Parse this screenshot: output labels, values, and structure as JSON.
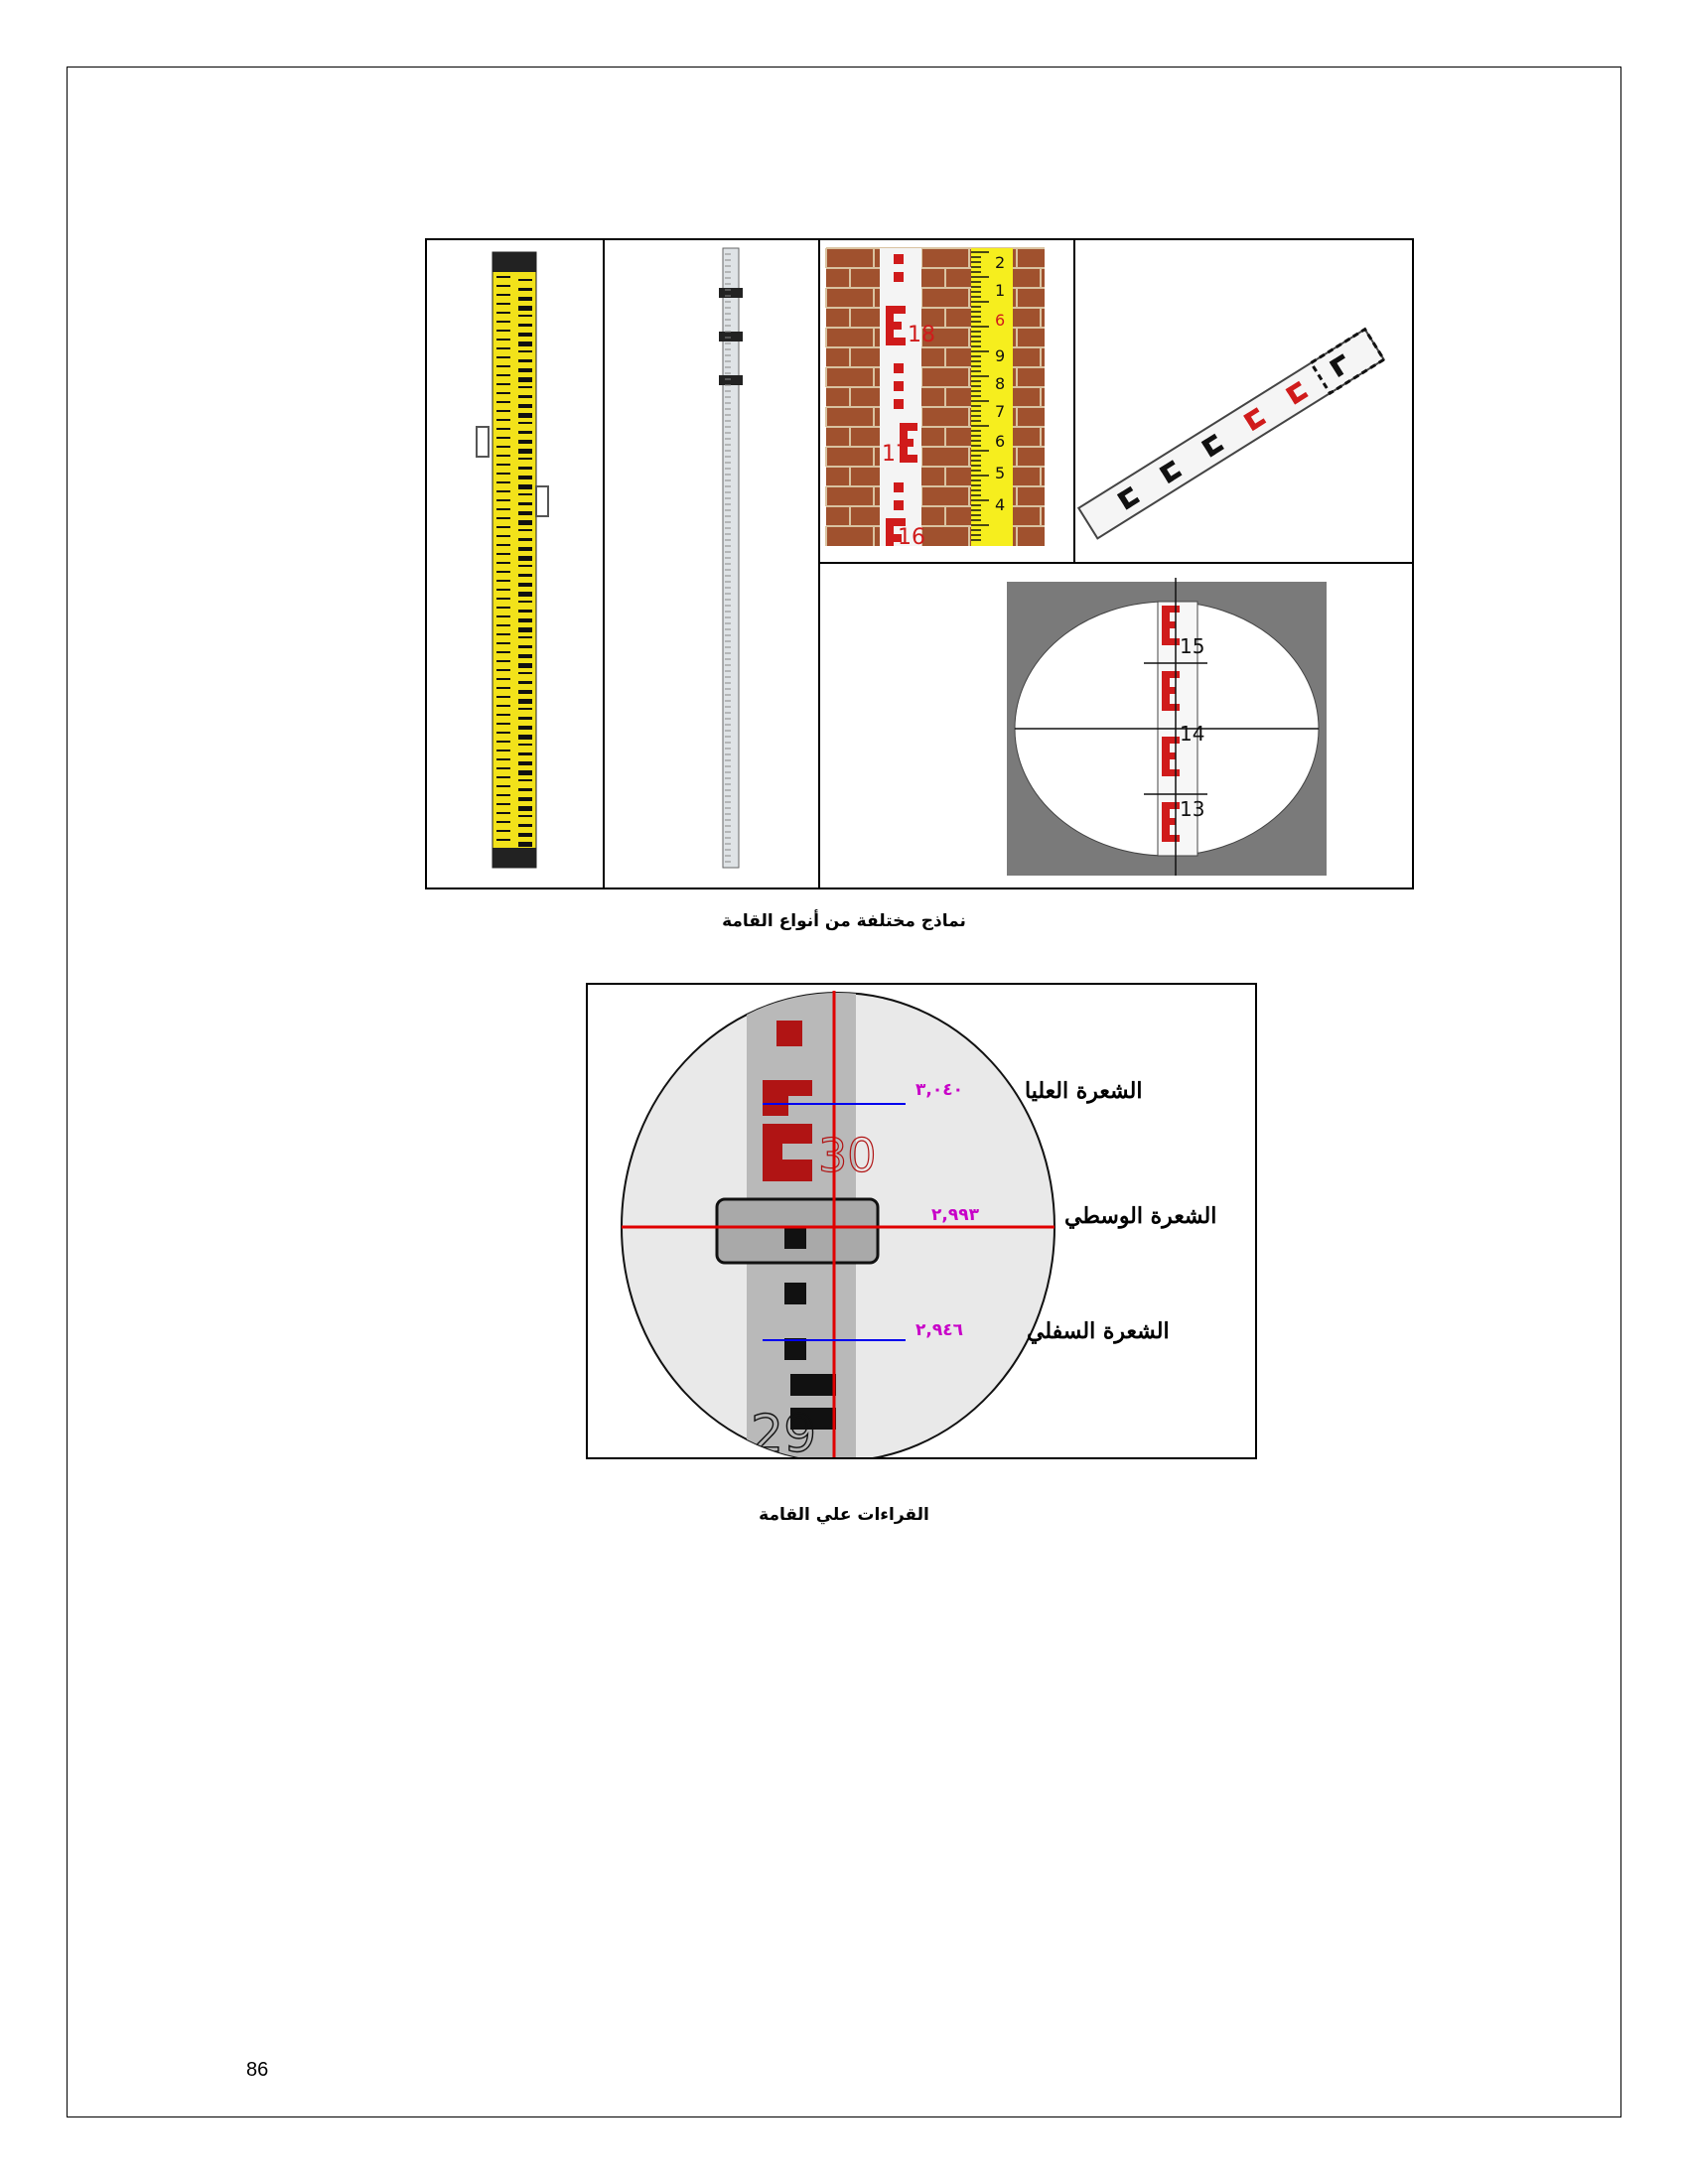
{
  "page": {
    "page_number": "86"
  },
  "figure1": {
    "caption": "نماذج مختلفة من أنواع القامة",
    "brick_staff_numbers": [
      "18",
      "17",
      "16"
    ],
    "yellow_tape_numbers": [
      "2",
      "1",
      "6",
      "9",
      "8",
      "7",
      "6",
      "5",
      "4"
    ],
    "reticle_numbers": [
      "15",
      "14",
      "13"
    ]
  },
  "figure2": {
    "caption": "القراءات علي القامة",
    "staff_number_top": "30",
    "staff_number_bottom": "29",
    "hairs": [
      {
        "label": "الشعرة العليا",
        "reading": "٣,٠٤٠",
        "color": "#0000ff"
      },
      {
        "label": "الشعرة الوسطي",
        "reading": "٢,٩٩٣",
        "color": "#ff0000"
      },
      {
        "label": "الشعرة السفلي",
        "reading": "٢,٩٤٦",
        "color": "#0000ff"
      }
    ]
  }
}
